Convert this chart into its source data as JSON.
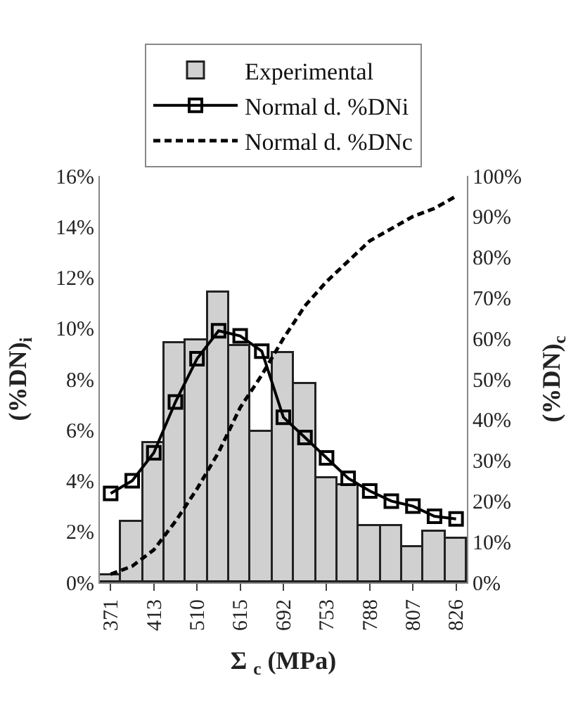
{
  "chart_data": {
    "type": "bar",
    "xlabel": "Σ $_{c}$ (MPa)",
    "ylabel": "(%DN)$_{i}$",
    "y2label": "(%DN)$_{c}$",
    "categories": [
      "371",
      null,
      "413",
      null,
      "510",
      null,
      "615",
      null,
      "692",
      null,
      "753",
      null,
      "788",
      null,
      "807",
      null,
      "826"
    ],
    "series": [
      {
        "name": "Experimental",
        "color": "#d0d0d0",
        "values": [
          0.3,
          2.4,
          5.5,
          9.4,
          9.5,
          11.4,
          9.3,
          5.9,
          9.0,
          7.8,
          4.1,
          3.8,
          2.2,
          2.2,
          1.4,
          2.0,
          1.7
        ]
      },
      {
        "name": "Normal d. %DNi",
        "type": "line",
        "color": "#000000",
        "marker": "square",
        "line_style": "solid",
        "values": [
          3.5,
          4.0,
          5.1,
          7.1,
          8.8,
          9.9,
          9.7,
          9.1,
          6.5,
          5.7,
          4.9,
          4.1,
          3.6,
          3.2,
          3.0,
          2.6,
          2.5
        ]
      },
      {
        "name": "Normal d. %DNc",
        "type": "line",
        "axis": "y2",
        "color": "#000000",
        "marker": "none",
        "line_style": "dashed",
        "values": [
          2,
          4,
          8,
          15,
          23,
          32,
          43,
          51,
          60,
          68,
          74,
          79,
          84,
          87,
          90,
          92,
          95
        ]
      }
    ],
    "ylim": [
      0,
      16
    ],
    "yticks": [
      {
        "value": 0,
        "label": "0%"
      },
      {
        "value": 2,
        "label": "2%"
      },
      {
        "value": 4,
        "label": "4%"
      },
      {
        "value": 6,
        "label": "6%"
      },
      {
        "value": 8,
        "label": "8%"
      },
      {
        "value": 10,
        "label": "10%"
      },
      {
        "value": 12,
        "label": "12%"
      },
      {
        "value": 14,
        "label": "14%"
      },
      {
        "value": 16,
        "label": "16%"
      }
    ],
    "y2lim": [
      0,
      100
    ],
    "y2ticks": [
      {
        "value": 0,
        "label": "0%"
      },
      {
        "value": 10,
        "label": "10%"
      },
      {
        "value": 20,
        "label": "20%"
      },
      {
        "value": 30,
        "label": "30%"
      },
      {
        "value": 40,
        "label": "40%"
      },
      {
        "value": 50,
        "label": "50%"
      },
      {
        "value": 60,
        "label": "60%"
      },
      {
        "value": 70,
        "label": "70%"
      },
      {
        "value": 80,
        "label": "80%"
      },
      {
        "value": 90,
        "label": "90%"
      },
      {
        "value": 100,
        "label": "100%"
      }
    ],
    "legend": "top"
  }
}
